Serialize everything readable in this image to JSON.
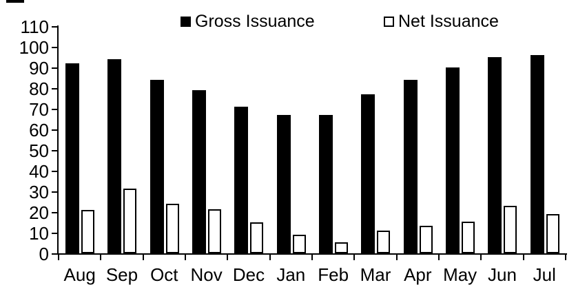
{
  "chart_data": {
    "type": "bar",
    "title": "",
    "xlabel": "",
    "ylabel": "",
    "categories": [
      "Aug",
      "Sep",
      "Oct",
      "Nov",
      "Dec",
      "Jan",
      "Feb",
      "Mar",
      "Apr",
      "May",
      "Jun",
      "Jul"
    ],
    "series": [
      {
        "name": "Gross Issuance",
        "marker": "filled-square",
        "color": "#000000",
        "values": [
          92,
          94,
          84,
          79,
          71,
          67,
          67,
          77,
          84,
          90,
          95,
          96
        ]
      },
      {
        "name": "Net Issuance",
        "marker": "open-square",
        "color": "#ffffff",
        "border_color": "#000000",
        "values": [
          21,
          31.5,
          24,
          21.5,
          15,
          9,
          5.5,
          11,
          13.5,
          15.5,
          23,
          19
        ]
      }
    ],
    "ylim": [
      0,
      110
    ],
    "yticks": [
      0,
      10,
      20,
      30,
      40,
      50,
      60,
      70,
      80,
      90,
      100,
      110
    ],
    "grid": false,
    "legend_position": "top"
  },
  "colors": {
    "axis": "#000000",
    "background": "#ffffff",
    "text": "#000000",
    "gross_fill": "#000000",
    "net_fill": "#ffffff",
    "net_outline": "#000000"
  }
}
